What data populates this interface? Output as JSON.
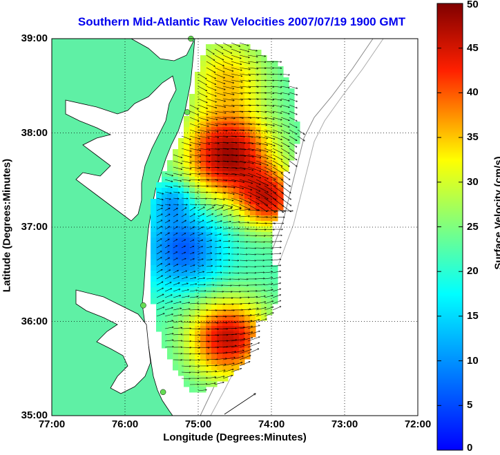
{
  "map": {
    "title": "Southern Mid-Atlantic Raw Velocities 2007/07/19 1900 GMT",
    "xlabel": "Longitude (Degrees:Minutes)",
    "ylabel": "Latitude (Degrees:Minutes)",
    "x_ticks": [
      "77:00",
      "76:00",
      "75:00",
      "74:00",
      "73:00",
      "72:00"
    ],
    "y_ticks": [
      "39:00",
      "38:00",
      "37:00",
      "36:00",
      "35:00"
    ],
    "lon_range": [
      -77,
      -72
    ],
    "lat_range": [
      35,
      39
    ],
    "colors": {
      "land": "#5ff0a5",
      "water": "#ffffff",
      "coast": "#000000",
      "station": "#66dd55"
    },
    "stations": [
      {
        "lon": -75.1,
        "lat": 39.0
      },
      {
        "lon": -75.15,
        "lat": 38.22
      },
      {
        "lon": -75.75,
        "lat": 36.17
      },
      {
        "lon": -75.48,
        "lat": 35.25
      }
    ]
  },
  "colorbar": {
    "label": "Surface Velocity (cm/s)",
    "ticks": [
      "50",
      "45",
      "40",
      "35",
      "30",
      "25",
      "20",
      "15",
      "10",
      "5",
      "0"
    ],
    "range": [
      0,
      50
    ],
    "colormap": "jet"
  }
}
